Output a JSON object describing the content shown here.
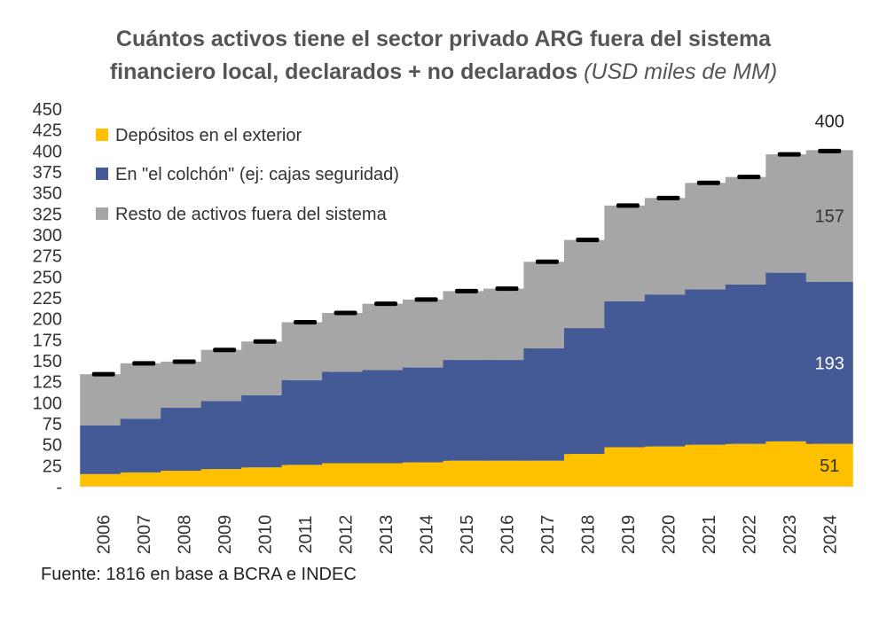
{
  "title": {
    "main_line1": "Cuántos activos tiene el sector privado ARG fuera del sistema",
    "main_line2": "financiero local, declarados + no declarados",
    "unit": "(USD miles de MM)"
  },
  "source": "Fuente: 1816 en base a BCRA e INDEC",
  "colors": {
    "depositos": "#FFC000",
    "colchon": "#445A96",
    "resto": "#A6A6A6",
    "total_marker": "#000000"
  },
  "chart_data": {
    "type": "bar",
    "stacked": true,
    "title": "Cuántos activos tiene el sector privado ARG fuera del sistema financiero local, declarados + no declarados (USD miles de MM)",
    "categories": [
      "2006",
      "2007",
      "2008",
      "2009",
      "2010",
      "2011",
      "2012",
      "2013",
      "2014",
      "2015",
      "2016",
      "2017",
      "2018",
      "2019",
      "2020",
      "2021",
      "2022",
      "2023",
      "2024"
    ],
    "series": [
      {
        "name": "Depósitos en el exterior",
        "key": "depositos",
        "values": [
          15,
          17,
          19,
          21,
          23,
          26,
          28,
          28,
          29,
          31,
          31,
          31,
          39,
          47,
          48,
          50,
          51,
          54,
          51
        ]
      },
      {
        "name": "En \"el colchón\" (ej: cajas seguridad)",
        "key": "colchon",
        "values": [
          58,
          64,
          75,
          81,
          86,
          101,
          109,
          111,
          113,
          120,
          120,
          134,
          150,
          174,
          181,
          185,
          190,
          201,
          193
        ]
      },
      {
        "name": "Resto de activos fuera del sistema",
        "key": "resto",
        "values": [
          61,
          66,
          55,
          61,
          64,
          69,
          70,
          79,
          81,
          82,
          85,
          103,
          105,
          114,
          115,
          127,
          128,
          141,
          157
        ]
      }
    ],
    "totals": [
      134,
      147,
      149,
      163,
      173,
      196,
      207,
      218,
      223,
      233,
      236,
      268,
      294,
      335,
      344,
      362,
      369,
      396,
      400
    ],
    "ylim": [
      0,
      450
    ],
    "yticks": [
      0,
      25,
      50,
      75,
      100,
      125,
      150,
      175,
      200,
      225,
      250,
      275,
      300,
      325,
      350,
      375,
      400,
      425,
      450
    ],
    "ytick_labels": [
      "-",
      "25",
      "50",
      "75",
      "100",
      "125",
      "150",
      "175",
      "200",
      "225",
      "250",
      "275",
      "300",
      "325",
      "350",
      "375",
      "400",
      "425",
      "450"
    ],
    "xlabel": "",
    "ylabel": "",
    "legend_position": "top-left",
    "annotations": [
      {
        "label": "400",
        "category": "2024",
        "series": "total",
        "value": 400
      },
      {
        "label": "157",
        "category": "2024",
        "series": "resto",
        "value": 157
      },
      {
        "label": "193",
        "category": "2024",
        "series": "colchon",
        "value": 193
      },
      {
        "label": "51",
        "category": "2024",
        "series": "depositos",
        "value": 51
      }
    ]
  }
}
